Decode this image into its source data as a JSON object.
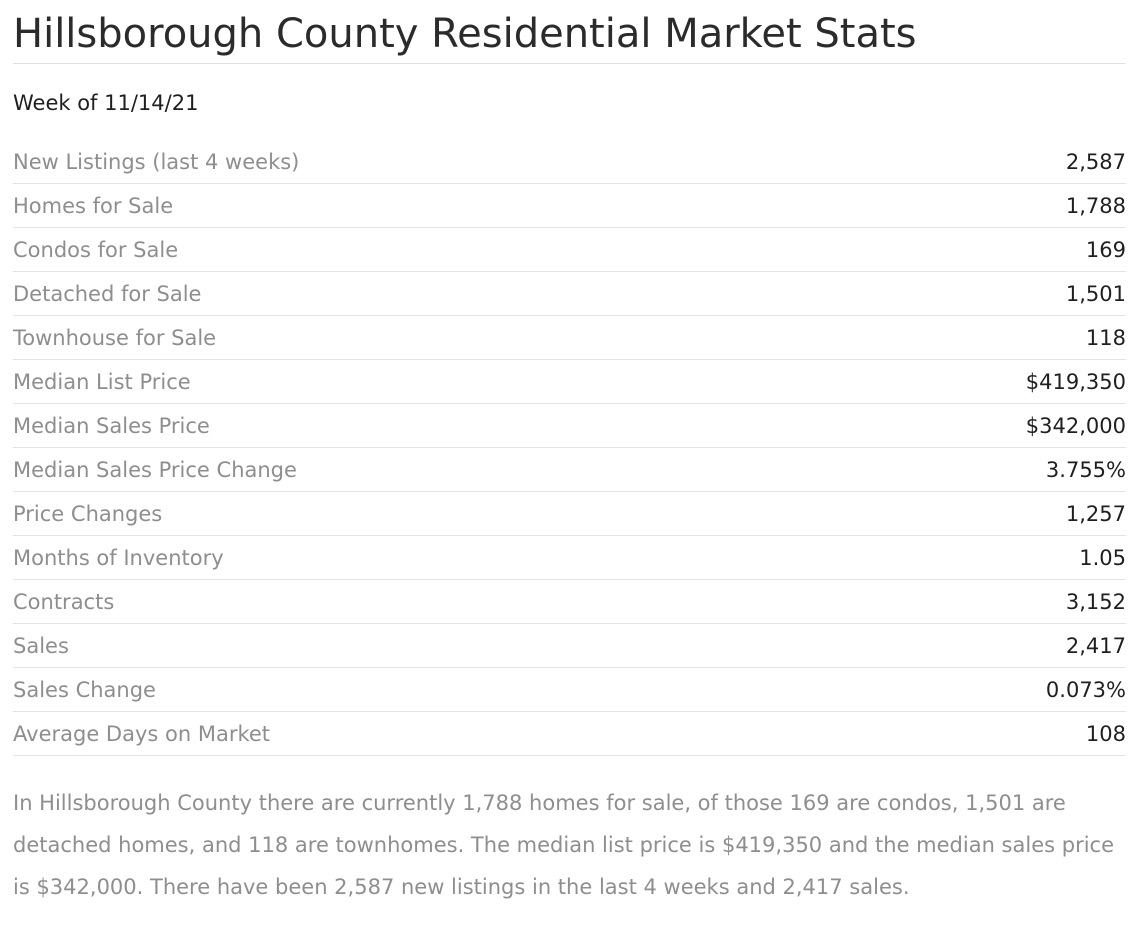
{
  "header": {
    "title": "Hillsborough County Residential Market Stats",
    "week": "Week of 11/14/21"
  },
  "stats": [
    {
      "label": "New Listings (last 4 weeks)",
      "value": "2,587"
    },
    {
      "label": "Homes for Sale",
      "value": "1,788"
    },
    {
      "label": "Condos for Sale",
      "value": "169"
    },
    {
      "label": "Detached for Sale",
      "value": "1,501"
    },
    {
      "label": "Townhouse for Sale",
      "value": "118"
    },
    {
      "label": "Median List Price",
      "value": "$419,350"
    },
    {
      "label": "Median Sales Price",
      "value": "$342,000"
    },
    {
      "label": "Median Sales Price Change",
      "value": "3.755%"
    },
    {
      "label": "Price Changes",
      "value": "1,257"
    },
    {
      "label": "Months of Inventory",
      "value": "1.05"
    },
    {
      "label": "Contracts",
      "value": "3,152"
    },
    {
      "label": "Sales",
      "value": "2,417"
    },
    {
      "label": "Sales Change",
      "value": "0.073%"
    },
    {
      "label": "Average Days on Market",
      "value": "108"
    }
  ],
  "summary": "In Hillsborough County there are currently 1,788 homes for sale, of those 169 are condos, 1,501 are detached homes, and 118 are townhomes. The median list price is $419,350 and the median sales price is $342,000. There have been 2,587 new listings in the last 4 weeks and 2,417 sales."
}
